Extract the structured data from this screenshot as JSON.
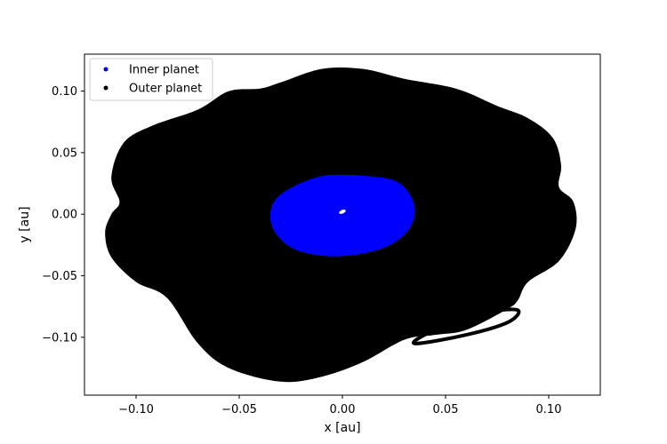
{
  "chart_data": {
    "type": "scatter",
    "title": "",
    "xlabel": "x [au]",
    "ylabel": "y [au]",
    "xlim": [
      -0.125,
      0.125
    ],
    "ylim": [
      -0.147,
      0.13
    ],
    "xticks": [
      -0.1,
      -0.05,
      0.0,
      0.05,
      0.1
    ],
    "xtick_labels": [
      "−0.10",
      "−0.05",
      "0.00",
      "0.05",
      "0.10"
    ],
    "yticks": [
      -0.1,
      -0.05,
      0.0,
      0.05,
      0.1
    ],
    "ytick_labels": [
      "−0.10",
      "−0.05",
      "0.00",
      "0.05",
      "0.10"
    ],
    "grid": false,
    "legend_position": "top-left",
    "series": [
      {
        "name": "Inner planet",
        "color": "#0000ff",
        "marker": "dot",
        "region_outline": [
          [
            -0.035,
            0.0
          ],
          [
            -0.032,
            0.013
          ],
          [
            -0.022,
            0.024
          ],
          [
            -0.01,
            0.031
          ],
          [
            0.0,
            0.032
          ],
          [
            0.012,
            0.031
          ],
          [
            0.024,
            0.028
          ],
          [
            0.031,
            0.02
          ],
          [
            0.035,
            0.005
          ],
          [
            0.033,
            -0.01
          ],
          [
            0.026,
            -0.022
          ],
          [
            0.015,
            -0.03
          ],
          [
            0.0,
            -0.034
          ],
          [
            -0.013,
            -0.033
          ],
          [
            -0.025,
            -0.027
          ],
          [
            -0.033,
            -0.014
          ]
        ],
        "center_hole": [
          0.0,
          0.002
        ]
      },
      {
        "name": "Outer planet",
        "color": "#000000",
        "marker": "dot",
        "region_outline": [
          [
            -0.112,
            0.03
          ],
          [
            -0.106,
            0.058
          ],
          [
            -0.092,
            0.072
          ],
          [
            -0.07,
            0.085
          ],
          [
            -0.055,
            0.1
          ],
          [
            -0.04,
            0.102
          ],
          [
            -0.03,
            0.107
          ],
          [
            -0.01,
            0.118
          ],
          [
            0.01,
            0.118
          ],
          [
            0.03,
            0.11
          ],
          [
            0.055,
            0.102
          ],
          [
            0.075,
            0.088
          ],
          [
            0.09,
            0.078
          ],
          [
            0.102,
            0.062
          ],
          [
            0.106,
            0.04
          ],
          [
            0.105,
            0.022
          ],
          [
            0.112,
            0.01
          ],
          [
            0.113,
            -0.012
          ],
          [
            0.105,
            -0.038
          ],
          [
            0.09,
            -0.055
          ],
          [
            0.085,
            -0.07
          ],
          [
            0.08,
            -0.077
          ],
          [
            0.06,
            -0.094
          ],
          [
            0.045,
            -0.098
          ],
          [
            0.03,
            -0.102
          ],
          [
            0.01,
            -0.12
          ],
          [
            -0.01,
            -0.132
          ],
          [
            -0.03,
            -0.136
          ],
          [
            -0.055,
            -0.125
          ],
          [
            -0.07,
            -0.105
          ],
          [
            -0.085,
            -0.068
          ],
          [
            -0.1,
            -0.055
          ],
          [
            -0.112,
            -0.035
          ],
          [
            -0.115,
            -0.015
          ],
          [
            -0.112,
            0.0
          ],
          [
            -0.108,
            0.01
          ]
        ],
        "loop_outline": [
          [
            0.035,
            -0.105
          ],
          [
            0.06,
            -0.098
          ],
          [
            0.08,
            -0.088
          ],
          [
            0.085,
            -0.078
          ],
          [
            0.07,
            -0.08
          ],
          [
            0.045,
            -0.094
          ]
        ]
      }
    ]
  }
}
